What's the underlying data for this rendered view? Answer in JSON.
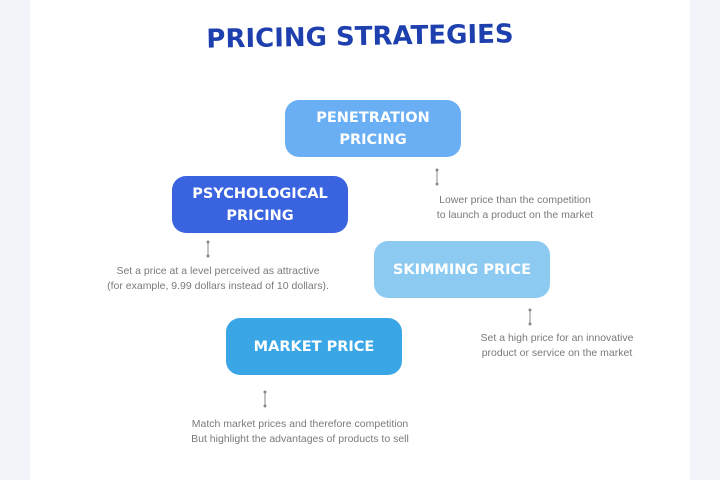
{
  "title": "PRICING STRATEGIES",
  "colors": {
    "title": "#1e3fae",
    "penetration": "#6aaff4",
    "psychological": "#3a63df",
    "skimming": "#8ccaf1",
    "market": "#3ba6e6",
    "description": "#7a7a7a"
  },
  "strategies": [
    {
      "label": "PENETRATION PRICING",
      "description": [
        "Lower price than the competition",
        "to launch a product on the market"
      ]
    },
    {
      "label": "PSYCHOLOGICAL PRICING",
      "description": [
        "Set a price at a level perceived as attractive",
        "(for example, 9.99 dollars instead of 10 dollars)."
      ]
    },
    {
      "label": "SKIMMING PRICE",
      "description": [
        "Set a high price for an innovative",
        "product or service on the market"
      ]
    },
    {
      "label": "MARKET PRICE",
      "description": [
        "Match market prices and therefore competition",
        "But highlight the advantages of products to sell"
      ]
    }
  ]
}
